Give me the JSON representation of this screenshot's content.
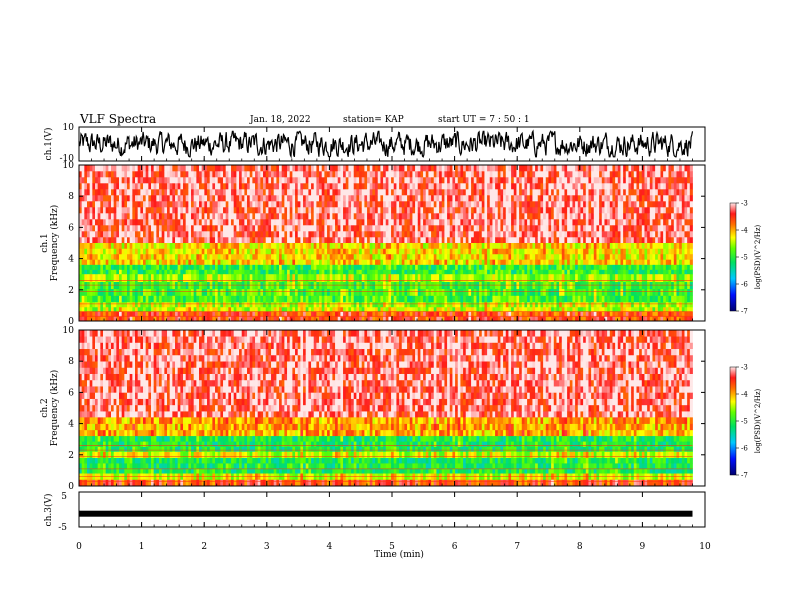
{
  "header": {
    "title": "VLF Spectra",
    "date": "Jan. 18, 2022",
    "station": "station= KAP",
    "start": "start  UT =   7 : 50 : 1"
  },
  "chart_data": [
    {
      "type": "line",
      "name": "ch1-waveform",
      "ylabel": "ch.1(V)",
      "ylim": [
        -10,
        10
      ],
      "yticks": [
        10,
        -10
      ],
      "xlim": [
        0,
        10
      ],
      "color": "#000000",
      "signal": "noisy, amplitude approx -7 to 7 V, spanning 0 to 9.8 min"
    },
    {
      "type": "heatmap",
      "name": "ch1-spectrogram",
      "ylabel_top": "ch.1",
      "ylabel": "Frequency (kHz)",
      "ylim": [
        0,
        10
      ],
      "yticks": [
        0,
        2,
        4,
        6,
        8,
        10
      ],
      "xlim": [
        0,
        10
      ],
      "data_extent_min": 9.8,
      "colorbar": {
        "label": "log(PSD)(V^2/Hz)",
        "range": [
          -7,
          -3
        ],
        "ticks": [
          "-3",
          "-4",
          "-5",
          "-6",
          "-7"
        ]
      },
      "bands": [
        {
          "from": 5.0,
          "to": 10.0,
          "level": -3.3
        },
        {
          "from": 3.6,
          "to": 5.0,
          "level": -4.2
        },
        {
          "from": 3.0,
          "to": 3.6,
          "level": -5.0
        },
        {
          "from": 2.5,
          "to": 3.0,
          "level": -4.6
        },
        {
          "from": 1.2,
          "to": 2.5,
          "level": -4.9
        },
        {
          "from": 0.6,
          "to": 1.2,
          "level": -4.5
        },
        {
          "from": 0.0,
          "to": 0.6,
          "level": -3.6
        }
      ]
    },
    {
      "type": "heatmap",
      "name": "ch2-spectrogram",
      "ylabel_top": "ch.2",
      "ylabel": "Frequency (kHz)",
      "ylim": [
        0,
        10
      ],
      "yticks": [
        0,
        2,
        4,
        6,
        8,
        10
      ],
      "xlim": [
        0,
        10
      ],
      "data_extent_min": 9.8,
      "colorbar": {
        "label": "log(PSD)(V^2/Hz)",
        "range": [
          -7,
          -3
        ],
        "ticks": [
          "-3",
          "-4",
          "-5",
          "-6",
          "-7"
        ]
      },
      "bands": [
        {
          "from": 4.4,
          "to": 10.0,
          "level": -3.3
        },
        {
          "from": 3.2,
          "to": 4.4,
          "level": -4.0
        },
        {
          "from": 2.2,
          "to": 3.2,
          "level": -5.1
        },
        {
          "from": 1.8,
          "to": 2.2,
          "level": -4.4
        },
        {
          "from": 0.8,
          "to": 1.8,
          "level": -5.1
        },
        {
          "from": 0.4,
          "to": 0.8,
          "level": -4.4
        },
        {
          "from": 0.0,
          "to": 0.4,
          "level": -3.6
        }
      ]
    },
    {
      "type": "line",
      "name": "ch3-waveform",
      "ylabel": "ch.3(V)",
      "ylim": [
        -5,
        5
      ],
      "yticks": [
        5,
        -5
      ],
      "xlim": [
        0,
        10
      ],
      "level": -1.2,
      "color": "#000000"
    }
  ],
  "xaxis": {
    "label": "Time (min)",
    "ticks": [
      "0",
      "1",
      "2",
      "3",
      "4",
      "5",
      "6",
      "7",
      "8",
      "9",
      "10"
    ],
    "range": [
      0,
      10
    ]
  }
}
